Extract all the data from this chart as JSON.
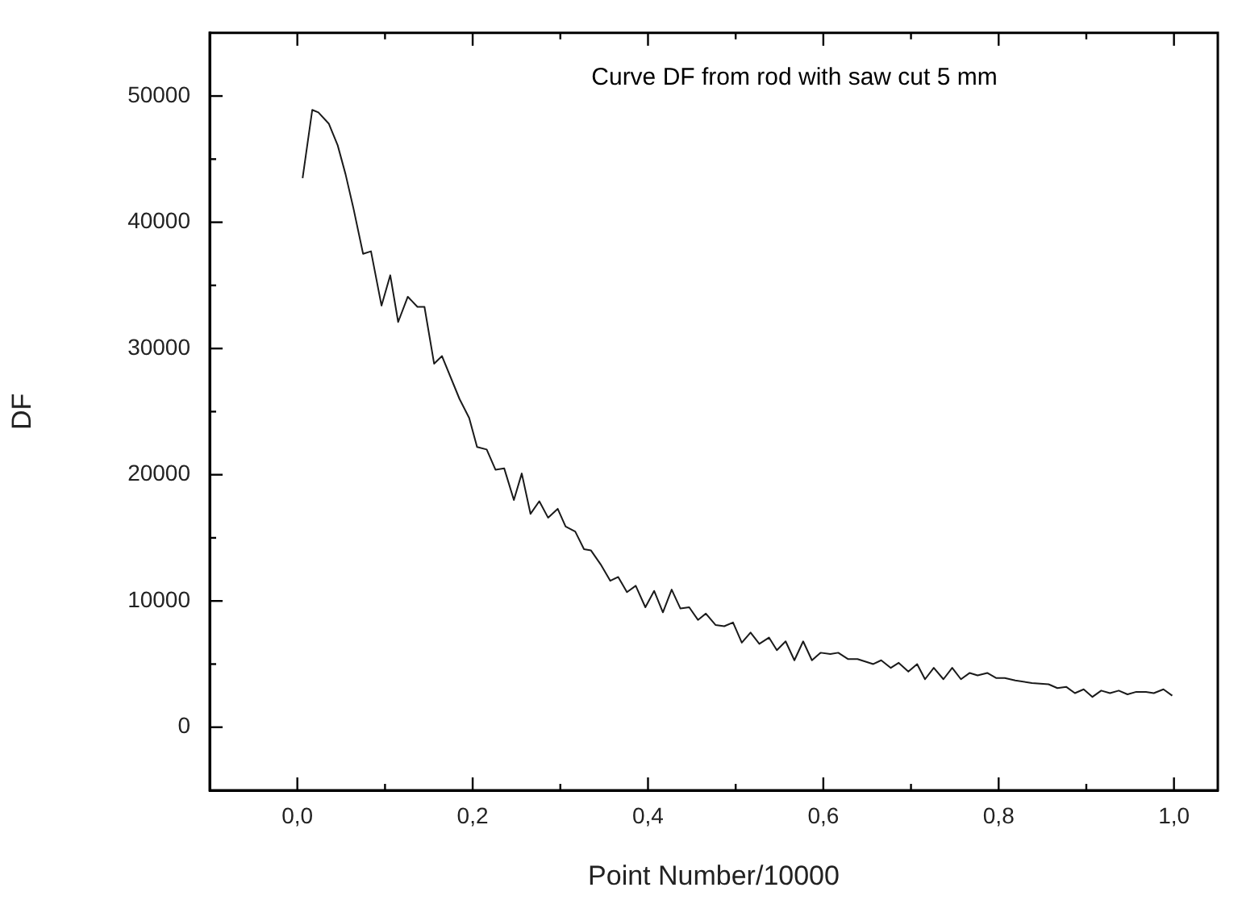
{
  "chart_data": {
    "type": "line",
    "xlabel": "Point Number/10000",
    "ylabel": "DF",
    "annotations": [
      "Curve DF from rod with saw cut 5 mm"
    ],
    "xlim": [
      -0.1,
      1.05
    ],
    "xticks": [
      {
        "value": 0,
        "label": "0,0"
      },
      {
        "value": 0.1,
        "label": null
      },
      {
        "value": 0.2,
        "label": "0,2"
      },
      {
        "value": 0.3,
        "label": null
      },
      {
        "value": 0.4,
        "label": "0,4"
      },
      {
        "value": 0.5,
        "label": null
      },
      {
        "value": 0.6,
        "label": "0,6"
      },
      {
        "value": 0.7,
        "label": null
      },
      {
        "value": 0.8,
        "label": "0,8"
      },
      {
        "value": 0.9,
        "label": null
      },
      {
        "value": 1,
        "label": "1,0"
      }
    ],
    "ylim": [
      -5000,
      55000
    ],
    "yticks": [
      0,
      {
        "value": 5000,
        "label": null
      },
      10000,
      {
        "value": 15000,
        "label": null
      },
      20000,
      {
        "value": 25000,
        "label": null
      },
      30000,
      {
        "value": 35000,
        "label": null
      },
      40000,
      {
        "value": 45000,
        "label": null
      },
      50000
    ],
    "grid": false,
    "legend": false,
    "marker": "none",
    "line_style": "solid",
    "series": [
      {
        "color": "#1a1a1a",
        "x": [
          0.006,
          0.017,
          0.024,
          0.036,
          0.046,
          0.055,
          0.064,
          0.075,
          0.084,
          0.096,
          0.106,
          0.115,
          0.126,
          0.137,
          0.145,
          0.156,
          0.165,
          0.185,
          0.196,
          0.205,
          0.216,
          0.226,
          0.236,
          0.247,
          0.256,
          0.266,
          0.276,
          0.286,
          0.297,
          0.306,
          0.317,
          0.327,
          0.335,
          0.346,
          0.357,
          0.366,
          0.376,
          0.386,
          0.397,
          0.407,
          0.417,
          0.427,
          0.437,
          0.447,
          0.457,
          0.466,
          0.477,
          0.487,
          0.497,
          0.507,
          0.517,
          0.527,
          0.538,
          0.547,
          0.557,
          0.567,
          0.577,
          0.587,
          0.597,
          0.608,
          0.617,
          0.628,
          0.639,
          0.657,
          0.666,
          0.677,
          0.686,
          0.697,
          0.707,
          0.716,
          0.726,
          0.737,
          0.747,
          0.757,
          0.767,
          0.776,
          0.787,
          0.797,
          0.807,
          0.819,
          0.838,
          0.857,
          0.867,
          0.877,
          0.887,
          0.897,
          0.907,
          0.917,
          0.927,
          0.937,
          0.947,
          0.957,
          0.968,
          0.977,
          0.988,
          0.998
        ],
        "values": [
          43500,
          48900,
          48700,
          47800,
          46100,
          43800,
          41100,
          37500,
          37700,
          33400,
          35800,
          32100,
          34100,
          33300,
          33300,
          28800,
          29400,
          26000,
          24500,
          22200,
          22000,
          20400,
          20500,
          18000,
          20100,
          16900,
          17900,
          16600,
          17300,
          15900,
          15500,
          14100,
          14000,
          12900,
          11600,
          11900,
          10700,
          11200,
          9500,
          10800,
          9100,
          10900,
          9400,
          9500,
          8500,
          9000,
          8100,
          8000,
          8300,
          6700,
          7500,
          6600,
          7100,
          6100,
          6800,
          5300,
          6800,
          5300,
          5900,
          5800,
          5900,
          5400,
          5400,
          5000,
          5300,
          4700,
          5100,
          4400,
          5000,
          3800,
          4700,
          3800,
          4700,
          3800,
          4300,
          4100,
          4300,
          3900,
          3900,
          3700,
          3500,
          3400,
          3100,
          3200,
          2700,
          3000,
          2400,
          2900,
          2700,
          2900,
          2600,
          2800,
          2800,
          2700,
          3000,
          2500
        ]
      }
    ]
  }
}
